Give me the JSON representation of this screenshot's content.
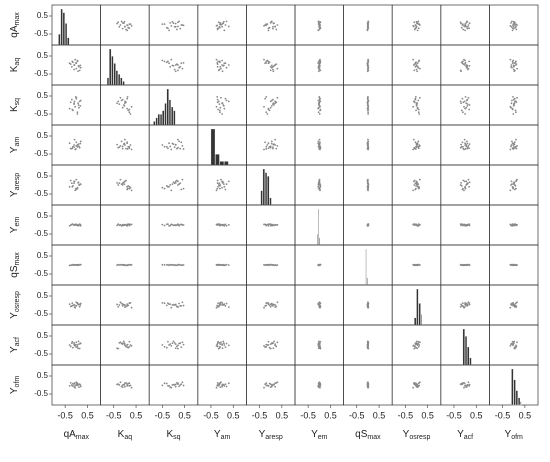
{
  "chart_data": {
    "type": "scatter_matrix",
    "xlim": [
      -1,
      1
    ],
    "ylim": [
      -1,
      1
    ],
    "xticks": [
      -0.5,
      0.5
    ],
    "yticks": [
      -0.5,
      0.5
    ],
    "point_color": "#8a8a8a",
    "bar_color": "#333333",
    "variables": [
      {
        "name": "qA",
        "sub": "max",
        "samples": [
          -0.2,
          0.05,
          -0.1,
          0.15,
          -0.3,
          0.0,
          -0.05,
          0.1,
          -0.15,
          0.2,
          -0.25,
          0.05,
          -0.1,
          0.0,
          0.12,
          -0.08,
          -0.18,
          0.08,
          -0.02,
          0.18
        ],
        "bins": [
          -0.8,
          -0.7,
          -0.6,
          -0.5,
          -0.4,
          -0.3
        ],
        "counts": [
          3,
          10,
          9,
          6,
          2
        ]
      },
      {
        "name": "K",
        "sub": "aq",
        "samples": [
          -0.1,
          0.2,
          0.0,
          -0.3,
          0.1,
          -0.2,
          0.3,
          -0.05,
          0.15,
          -0.15,
          0.05,
          0.25,
          -0.25,
          0.1,
          -0.1,
          0.0,
          0.2,
          -0.35,
          0.12,
          -0.02
        ],
        "bins": [
          -0.8,
          -0.7,
          -0.6,
          -0.5,
          -0.4,
          -0.3,
          -0.2,
          -0.1,
          0.0
        ],
        "counts": [
          2,
          10,
          8,
          6,
          4,
          3,
          2,
          1
        ]
      },
      {
        "name": "K",
        "sub": "sq",
        "samples": [
          0.3,
          -0.4,
          0.1,
          0.2,
          -0.2,
          0.4,
          -0.1,
          0.0,
          -0.3,
          0.25,
          0.15,
          -0.5,
          0.05,
          0.35,
          -0.15,
          0.2,
          -0.25,
          0.1,
          0.45,
          -0.05
        ],
        "bins": [
          -0.9,
          -0.8,
          -0.7,
          -0.6,
          -0.5,
          -0.4,
          -0.3,
          -0.2,
          -0.1,
          0.0,
          0.1
        ],
        "counts": [
          1,
          2,
          3,
          3,
          4,
          6,
          10,
          7,
          5,
          4
        ]
      },
      {
        "name": "Y",
        "sub": "am",
        "samples": [
          -0.2,
          -0.1,
          0.0,
          -0.15,
          0.1,
          -0.05,
          -0.25,
          0.05,
          -0.1,
          0.2,
          -0.2,
          0.0,
          -0.12,
          0.15,
          -0.08,
          0.3,
          -0.18,
          0.02,
          -0.22,
          0.08
        ],
        "bins": [
          -0.5,
          -0.3,
          -0.1,
          0.1,
          0.3,
          0.5
        ],
        "counts": [
          10,
          3,
          1,
          1,
          0
        ]
      },
      {
        "name": "Y",
        "sub": "aresp",
        "samples": [
          0.1,
          -0.2,
          0.2,
          0.0,
          -0.1,
          0.3,
          -0.3,
          0.15,
          -0.05,
          0.05,
          0.25,
          -0.15,
          0.1,
          -0.25,
          0.0,
          0.2,
          -0.1,
          0.12,
          -0.2,
          0.05
        ],
        "bins": [
          -0.45,
          -0.35,
          -0.25,
          -0.15,
          -0.05,
          0.05
        ],
        "counts": [
          4,
          10,
          9,
          8,
          2
        ]
      },
      {
        "name": "Y",
        "sub": "em",
        "samples": [
          0.02,
          -0.03,
          0.0,
          0.05,
          -0.05,
          0.01,
          0.03,
          -0.02,
          0.04,
          -0.04,
          0.0,
          0.02,
          -0.01,
          0.03,
          -0.03,
          0.01,
          0.05,
          -0.02,
          0.0,
          0.02
        ],
        "bins": [
          -0.1,
          -0.05,
          0.0,
          0.05
        ],
        "counts": [
          3,
          10,
          2
        ]
      },
      {
        "name": "qS",
        "sub": "max",
        "samples": [
          0.0,
          0.01,
          -0.01,
          0.02,
          -0.02,
          0.0,
          0.01,
          -0.01,
          0.0,
          0.02,
          -0.02,
          0.01,
          0.0,
          -0.01,
          0.01,
          0.0,
          0.02,
          -0.01,
          0.0,
          0.01
        ],
        "bins": [
          -0.1,
          -0.05,
          0.0
        ],
        "counts": [
          10,
          2
        ]
      },
      {
        "name": "Y",
        "sub": "osresp",
        "samples": [
          -0.05,
          0.1,
          0.0,
          -0.1,
          0.05,
          0.15,
          -0.15,
          0.02,
          -0.02,
          0.08,
          -0.08,
          0.12,
          0.0,
          -0.05,
          0.05,
          -0.12,
          0.1,
          0.03,
          -0.03,
          0.0
        ],
        "bins": [
          -0.1,
          0.0,
          0.1,
          0.2,
          0.25
        ],
        "counts": [
          2,
          10,
          6,
          3
        ]
      },
      {
        "name": "Y",
        "sub": "acf",
        "samples": [
          0.1,
          -0.1,
          0.05,
          -0.2,
          0.0,
          0.15,
          -0.05,
          0.2,
          -0.15,
          0.08,
          -0.08,
          0.0,
          0.12,
          -0.12,
          0.05,
          -0.02,
          0.18,
          -0.18,
          0.02,
          0.1
        ],
        "bins": [
          -0.1,
          0.0,
          0.1,
          0.2,
          0.3
        ],
        "counts": [
          10,
          8,
          5,
          2
        ]
      },
      {
        "name": "Y",
        "sub": "ofm",
        "samples": [
          0.0,
          0.1,
          -0.1,
          0.05,
          -0.05,
          0.15,
          -0.15,
          0.02,
          0.08,
          -0.08,
          0.12,
          -0.02,
          0.0,
          0.05,
          -0.12,
          0.1,
          -0.05,
          0.03,
          -0.03,
          0.0
        ],
        "bins": [
          -0.1,
          0.0,
          0.1,
          0.2,
          0.3,
          0.35
        ],
        "counts": [
          10,
          7,
          4,
          2,
          1
        ]
      }
    ]
  }
}
